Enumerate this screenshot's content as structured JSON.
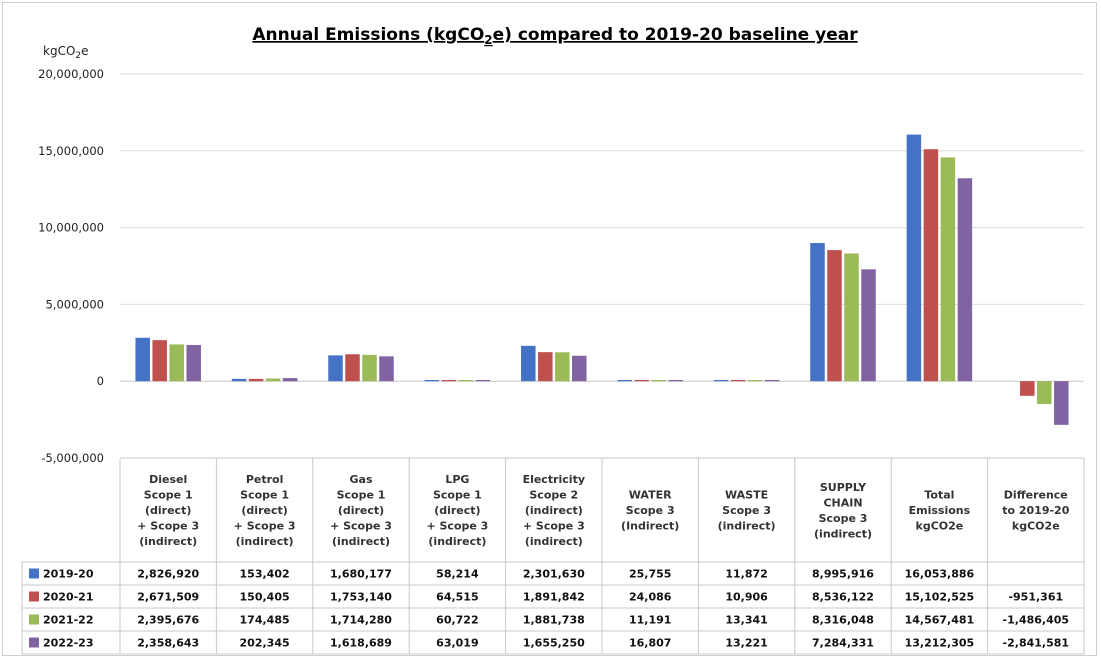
{
  "chart_data": {
    "type": "bar",
    "title_parts": [
      "Annual Emissions (kgCO",
      "2",
      "e) compared to 2019-20 baseline year"
    ],
    "ylabel_parts": [
      "kgCO",
      "2",
      "e"
    ],
    "ylim": [
      -5000000,
      20000000
    ],
    "yticks": [
      20000000,
      15000000,
      10000000,
      5000000,
      0,
      -5000000
    ],
    "ytick_labels": [
      "20,000,000",
      "15,000,000",
      "10,000,000",
      "5,000,000",
      "0",
      "-5,000,000"
    ],
    "grid": true,
    "legend_placement": "data-table-left",
    "categories": [
      [
        "Diesel",
        "Scope 1",
        "(direct)",
        "+ Scope 3",
        "(indirect)"
      ],
      [
        "Petrol",
        "Scope 1",
        "(direct)",
        "+ Scope 3",
        "(indirect)"
      ],
      [
        "Gas",
        "Scope 1",
        "(direct)",
        "+ Scope 3",
        "(indirect)"
      ],
      [
        "LPG",
        "Scope 1",
        "(direct)",
        "+ Scope 3",
        "(indirect)"
      ],
      [
        "Electricity",
        "Scope 2",
        "(indirect)",
        "+ Scope 3",
        "(indirect)"
      ],
      [
        "WATER",
        "Scope 3",
        "(Indirect)"
      ],
      [
        "WASTE",
        "Scope 3",
        "(indirect)"
      ],
      [
        "SUPPLY",
        "CHAIN",
        "Scope 3",
        "(indirect)"
      ],
      [
        "Total",
        "Emissions",
        "kgCO2e"
      ],
      [
        "Difference",
        "to 2019-20",
        "kgCO2e"
      ]
    ],
    "series": [
      {
        "name": "2019-20",
        "color": "#4472C4",
        "values": [
          2826920,
          153402,
          1680177,
          58214,
          2301630,
          25755,
          11872,
          8995916,
          16053886,
          null
        ],
        "labels": [
          "2,826,920",
          "153,402",
          "1,680,177",
          "58,214",
          "2,301,630",
          "25,755",
          "11,872",
          "8,995,916",
          "16,053,886",
          ""
        ]
      },
      {
        "name": "2020-21",
        "color": "#C0504D",
        "values": [
          2671509,
          150405,
          1753140,
          64515,
          1891842,
          24086,
          10906,
          8536122,
          15102525,
          -951361
        ],
        "labels": [
          "2,671,509",
          "150,405",
          "1,753,140",
          "64,515",
          "1,891,842",
          "24,086",
          "10,906",
          "8,536,122",
          "15,102,525",
          "-951,361"
        ]
      },
      {
        "name": "2021-22",
        "color": "#9BBB59",
        "values": [
          2395676,
          174485,
          1714280,
          60722,
          1881738,
          11191,
          13341,
          8316048,
          14567481,
          -1486405
        ],
        "labels": [
          "2,395,676",
          "174,485",
          "1,714,280",
          "60,722",
          "1,881,738",
          "11,191",
          "13,341",
          "8,316,048",
          "14,567,481",
          "-1,486,405"
        ]
      },
      {
        "name": "2022-23",
        "color": "#8064A2",
        "values": [
          2358643,
          202345,
          1618689,
          63019,
          1655250,
          16807,
          13221,
          7284331,
          13212305,
          -2841581
        ],
        "labels": [
          "2,358,643",
          "202,345",
          "1,618,689",
          "63,019",
          "1,655,250",
          "16,807",
          "13,221",
          "7,284,331",
          "13,212,305",
          "-2,841,581"
        ]
      }
    ]
  }
}
